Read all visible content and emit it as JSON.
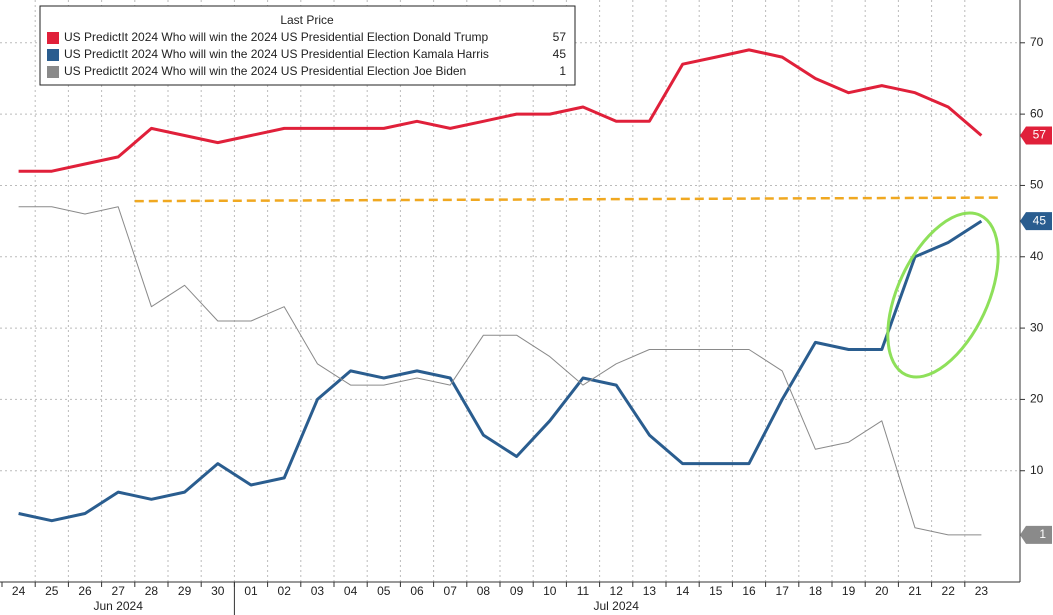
{
  "chart_data": {
    "type": "line",
    "legend_title": "Last Price",
    "categories": [
      "24",
      "25",
      "26",
      "27",
      "28",
      "29",
      "30",
      "01",
      "02",
      "03",
      "04",
      "05",
      "06",
      "07",
      "08",
      "09",
      "10",
      "11",
      "12",
      "13",
      "14",
      "15",
      "16",
      "17",
      "18",
      "19",
      "20",
      "21",
      "22",
      "23"
    ],
    "x_group_labels": [
      "Jun 2024",
      "Jul 2024"
    ],
    "series": [
      {
        "name": "US PredictIt 2024 Who will win the 2024 US Presidential Election Donald Trump",
        "color": "#e0203a",
        "values": [
          52,
          52,
          53,
          54,
          58,
          57,
          56,
          57,
          58,
          58,
          58,
          58,
          59,
          58,
          59,
          60,
          60,
          61,
          59,
          59,
          67,
          68,
          69,
          68,
          65,
          63,
          64,
          63,
          61,
          57
        ]
      },
      {
        "name": "US PredictIt 2024 Who will win the 2024 US Presidential Election Kamala Harris",
        "color": "#2a5d8f",
        "values": [
          4,
          3,
          4,
          7,
          6,
          7,
          11,
          8,
          9,
          20,
          24,
          23,
          24,
          23,
          15,
          12,
          17,
          23,
          22,
          15,
          11,
          11,
          11,
          20,
          28,
          27,
          27,
          40,
          42,
          45
        ]
      },
      {
        "name": "US PredictIt 2024 Who will win the 2024 US Presidential Election Joe Biden",
        "color": "#8a8a8a",
        "values": [
          47,
          47,
          46,
          47,
          33,
          36,
          31,
          31,
          33,
          25,
          22,
          22,
          23,
          22,
          29,
          29,
          26,
          22,
          25,
          27,
          27,
          27,
          27,
          24,
          13,
          14,
          17,
          2,
          1,
          1
        ]
      }
    ],
    "trend_line": {
      "color": "#f0a820",
      "x": [
        "28",
        "23"
      ],
      "values": [
        47.8,
        48.3
      ]
    },
    "ylim": [
      -5.6,
      76
    ],
    "yticks": [
      10,
      20,
      30,
      40,
      50,
      60,
      70
    ],
    "grid": true
  }
}
